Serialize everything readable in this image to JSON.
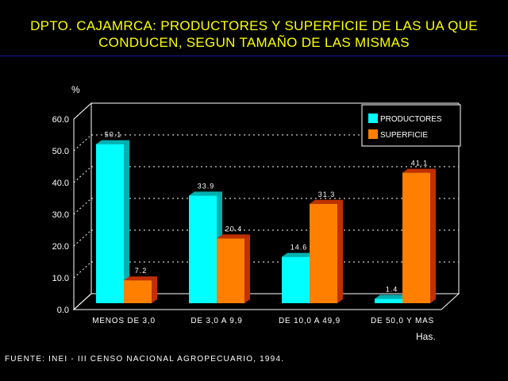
{
  "title_line1": "DPTO. CAJAMRCA: PRODUCTORES Y SUPERFICIE DE LAS UA QUE",
  "title_line2": "CONDUCEN, SEGUN TAMAÑO DE LAS MISMAS",
  "source": "FUENTE: INEI - III CENSO NACIONAL AGROPECUARIO, 1994.",
  "colors": {
    "productores": "#00ffff",
    "superficie": "#ff7f00",
    "title": "#ffff00"
  },
  "chart_data": {
    "type": "bar",
    "title": "DPTO. CAJAMRCA: PRODUCTORES Y SUPERFICIE DE LAS UA QUE CONDUCEN, SEGUN TAMAÑO DE LAS MISMAS",
    "ylabel": "%",
    "xlabel": "Has.",
    "ylim": [
      0,
      60
    ],
    "yticks": [
      "0.0",
      "10.0",
      "20.0",
      "30.0",
      "40.0",
      "50.0",
      "60.0"
    ],
    "categories": [
      "MENOS DE 3,0",
      "DE 3,0  A 9,9",
      "DE 10,0 A 49,9",
      "DE 50,0 Y MAS"
    ],
    "series": [
      {
        "name": "PRODUCTORES",
        "values": [
          50.1,
          33.9,
          14.6,
          1.4
        ],
        "labels": [
          "50.1",
          "33.9",
          "14.6",
          "1.4"
        ]
      },
      {
        "name": "SUPERFICIE",
        "values": [
          7.2,
          20.4,
          31.3,
          41.1
        ],
        "labels": [
          "7.2",
          "20.4",
          "31.3",
          "41.1"
        ]
      }
    ],
    "legend": "top-right",
    "grid": true
  }
}
